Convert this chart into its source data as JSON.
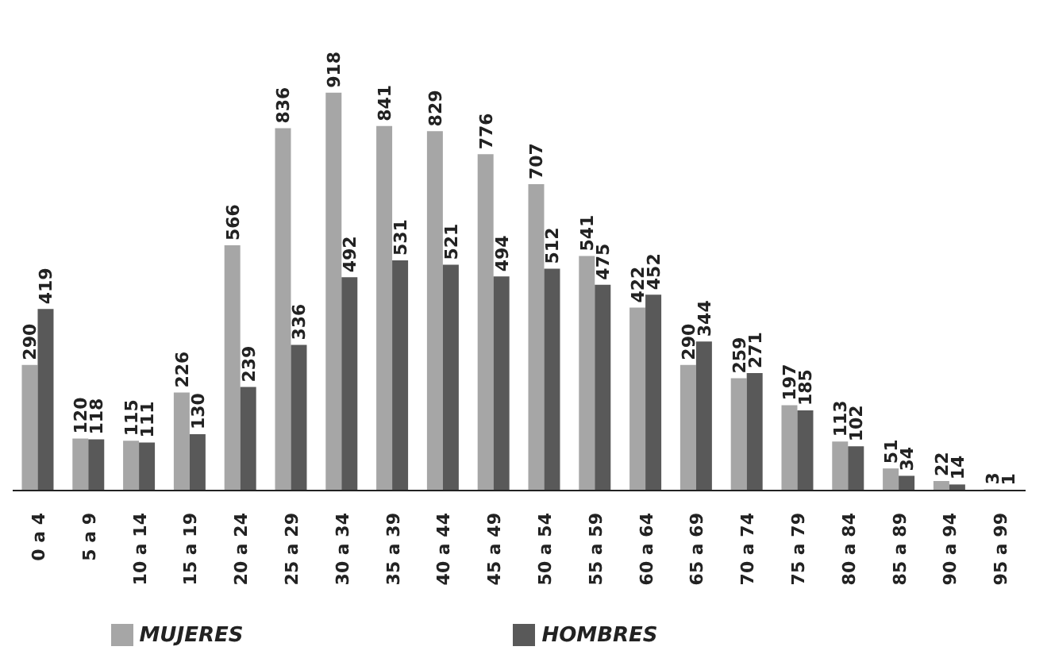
{
  "chart_data": {
    "type": "bar",
    "categories": [
      "0 a 4",
      "5 a 9",
      "10 a 14",
      "15 a 19",
      "20 a 24",
      "25 a 29",
      "30 a 34",
      "35 a 39",
      "40 a 44",
      "45 a 49",
      "50 a 54",
      "55 a 59",
      "60 a 64",
      "65 a 69",
      "70 a 74",
      "75 a 79",
      "80 a 84",
      "85 a 89",
      "90 a 94",
      "95 a 99"
    ],
    "series": [
      {
        "name": "MUJERES",
        "color": "#a6a6a6",
        "values": [
          290,
          120,
          115,
          226,
          566,
          836,
          918,
          841,
          829,
          776,
          707,
          541,
          422,
          290,
          259,
          197,
          113,
          51,
          22,
          3
        ]
      },
      {
        "name": "HOMBRES",
        "color": "#595959",
        "values": [
          419,
          118,
          111,
          130,
          239,
          336,
          492,
          531,
          521,
          494,
          512,
          475,
          452,
          344,
          271,
          185,
          102,
          34,
          14,
          1
        ]
      }
    ],
    "data_labels": true,
    "tick_labels": "x",
    "legend": "bottom"
  }
}
